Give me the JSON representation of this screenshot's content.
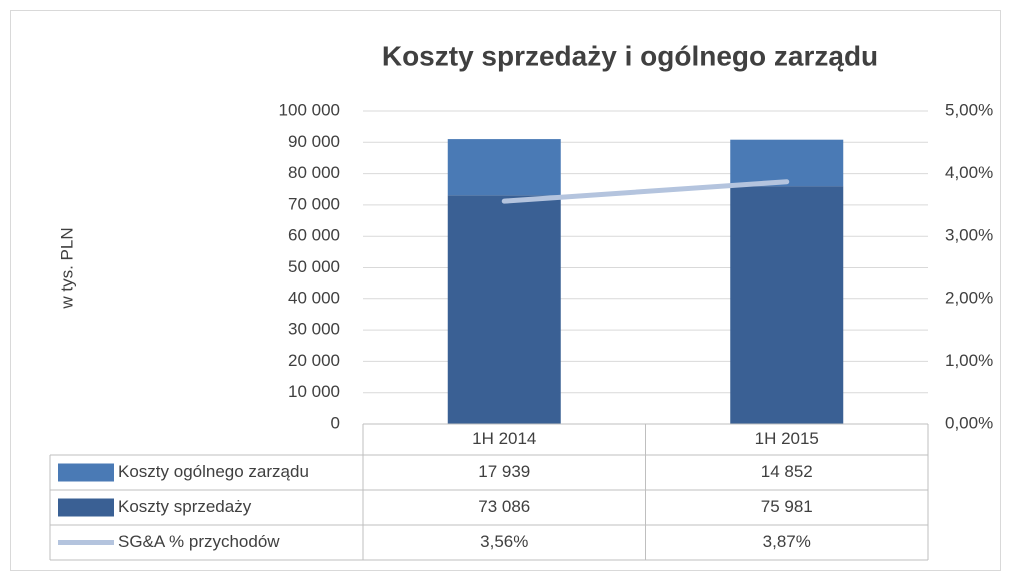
{
  "chart_data": {
    "type": "bar",
    "stacked": true,
    "title": "Koszty sprzedaży i ogólnego zarządu",
    "y_label": "w tys. PLN",
    "categories": [
      "1H 2014",
      "1H 2015"
    ],
    "series": [
      {
        "name": "Koszty ogólnego zarządu",
        "type": "bar",
        "color": "#4a7ab5",
        "values": [
          17939,
          14852
        ],
        "value_labels": [
          "17 939",
          "14 852"
        ]
      },
      {
        "name": "Koszty sprzedaży",
        "type": "bar",
        "color": "#3a6094",
        "values": [
          73086,
          75981
        ],
        "value_labels": [
          "73 086",
          "75 981"
        ]
      },
      {
        "name": "SG&A % przychodów",
        "type": "line",
        "axis": "y2",
        "color": "#b4c4de",
        "values": [
          3.56,
          3.87
        ],
        "value_labels": [
          "3,56%",
          "3,87%"
        ]
      }
    ],
    "ylim": [
      0,
      100000
    ],
    "yticks": [
      0,
      {
        "value": 10000,
        "label": "10 000"
      },
      {
        "value": 20000,
        "label": "20 000"
      },
      {
        "value": 30000,
        "label": "30 000"
      },
      {
        "value": 40000,
        "label": "40 000"
      },
      {
        "value": 50000,
        "label": "50 000"
      },
      {
        "value": 60000,
        "label": "60 000"
      },
      {
        "value": 70000,
        "label": "70 000"
      },
      {
        "value": 80000,
        "label": "80 000"
      },
      {
        "value": 90000,
        "label": "90 000"
      },
      {
        "value": 100000,
        "label": "100 000"
      }
    ],
    "y2lim": [
      0,
      5
    ],
    "y2ticks": [
      {
        "value": 0,
        "label": "0,00%"
      },
      {
        "value": 1,
        "label": "1,00%"
      },
      {
        "value": 2,
        "label": "2,00%"
      },
      {
        "value": 3,
        "label": "3,00%"
      },
      {
        "value": 4,
        "label": "4,00%"
      },
      {
        "value": 5,
        "label": "5,00%"
      }
    ],
    "grid": true,
    "data_table": true
  }
}
